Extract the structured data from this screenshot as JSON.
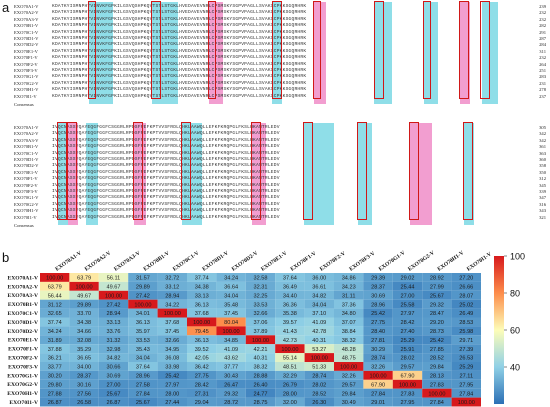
{
  "panel_labels": {
    "a": "a",
    "b": "b"
  },
  "alignment": {
    "consensus_label": "Consensus",
    "block1": {
      "ends": [
        "239",
        "232",
        "232",
        "282",
        "291",
        "287",
        "284",
        "311",
        "232",
        "264",
        "251",
        "283",
        "231",
        "278",
        "237",
        "232",
        "230"
      ],
      "sequence": "KDATKYISMNPHTVINVKFGPKILGSVQSHPKQVTSTLSTGKLHVEDAVEVNRLCPSMSKYSGPVPAGLLSVAKSCPKKSGQRHRK"
    },
    "block2": {
      "ends": [
        "305",
        "342",
        "342",
        "361",
        "363",
        "360",
        "358",
        "350",
        "312",
        "345",
        "339",
        "347",
        "316",
        "343",
        "321",
        "345",
        "359"
      ],
      "sequence": "IVQCNASSYQAYEQGFGGFCSGGRLRPDSFPEFKPTVVSFRDLQHKLAAWQLLEFKFKRQPGLFKSLHKANTRLEDV"
    }
  },
  "chart_data": {
    "type": "heatmap",
    "categories": [
      "EXO70A1-V",
      "EXO70A2-V",
      "EXO70A3-V",
      "EXO70B1-V",
      "EXO70C1-V",
      "EXO70D1-V",
      "EXO70D2-V",
      "EXO70E1-V",
      "EXO70F1-V",
      "EXO70F2-V",
      "EXO70F3-V",
      "EXO70G1-V",
      "EXO70G2-V",
      "EXO70H1-V",
      "EXO70I1-V"
    ],
    "values": [
      [
        100.0,
        63.79,
        56.11,
        31.57,
        32.72,
        37.74,
        34.24,
        32.58,
        37.64,
        36.0,
        34.86,
        29.39,
        29.02,
        28.92,
        27.2
      ],
      [
        63.79,
        100.0,
        49.67,
        29.89,
        33.12,
        34.38,
        36.64,
        32.31,
        36.49,
        36.61,
        34.23,
        28.37,
        25.44,
        27.99,
        26.66
      ],
      [
        56.44,
        49.67,
        100.0,
        27.42,
        28.94,
        33.13,
        34.04,
        32.25,
        34.4,
        34.82,
        31.11,
        30.69,
        27.0,
        25.67,
        28.07
      ],
      [
        31.12,
        29.89,
        27.42,
        100.0,
        34.22,
        36.13,
        35.48,
        33.53,
        36.36,
        34.04,
        37.36,
        28.96,
        25.58,
        29.32,
        25.02
      ],
      [
        32.65,
        33.7,
        28.94,
        34.01,
        100.0,
        37.68,
        37.45,
        32.66,
        35.38,
        37.1,
        34.8,
        25.42,
        27.97,
        28.47,
        26.49
      ],
      [
        37.74,
        34.38,
        33.13,
        36.13,
        37.68,
        100.0,
        80.04,
        37.06,
        39.57,
        41.09,
        37.07,
        27.75,
        28.42,
        29.2,
        28.53
      ],
      [
        34.24,
        34.66,
        33.76,
        35.97,
        37.45,
        79.45,
        100.0,
        37.89,
        41.43,
        42.78,
        38.84,
        28.4,
        27.4,
        28.73,
        25.98
      ],
      [
        31.89,
        32.08,
        31.32,
        33.53,
        32.66,
        36.13,
        34.85,
        100.0,
        42.73,
        40.31,
        38.32,
        27.81,
        25.29,
        25.42,
        29.71
      ],
      [
        37.88,
        35.29,
        32.98,
        35.43,
        34.95,
        39.52,
        41.09,
        42.21,
        100.0,
        53.27,
        48.28,
        30.29,
        25.91,
        27.85,
        27.39
      ],
      [
        36.21,
        36.65,
        34.82,
        34.04,
        36.08,
        42.05,
        43.62,
        40.31,
        55.14,
        100.0,
        48.75,
        28.74,
        28.02,
        28.52,
        26.53
      ],
      [
        33.77,
        34.0,
        30.66,
        37.64,
        33.98,
        36.42,
        37.77,
        38.32,
        48.51,
        51.33,
        100.0,
        32.26,
        29.57,
        29.84,
        25.29
      ],
      [
        30.2,
        28.37,
        30.69,
        28.96,
        25.42,
        27.75,
        30.43,
        28.88,
        32.29,
        28.74,
        32.26,
        100.0,
        67.9,
        28.13,
        27.11
      ],
      [
        29.8,
        30.16,
        27.0,
        27.58,
        27.97,
        28.42,
        26.47,
        26.4,
        26.79,
        28.02,
        29.57,
        67.9,
        100.0,
        27.83,
        27.95
      ],
      [
        27.88,
        27.56,
        25.67,
        27.84,
        28.0,
        27.31,
        29.32,
        24.77,
        28.0,
        28.52,
        29.84,
        27.84,
        27.83,
        100.0,
        27.84
      ],
      [
        26.87,
        26.58,
        26.87,
        25.67,
        27.44,
        29.04,
        28.72,
        28.75,
        32.0,
        26.3,
        30.49,
        29.01,
        27.95,
        27.84,
        100.0
      ]
    ],
    "colorbar_ticks": [
      100,
      80,
      60,
      40
    ],
    "vmin": 20,
    "vmax": 100,
    "colormap": [
      "#2b6fb5",
      "#8fd0e6",
      "#fdfdb8",
      "#fd8d4b",
      "#d7191c"
    ]
  }
}
